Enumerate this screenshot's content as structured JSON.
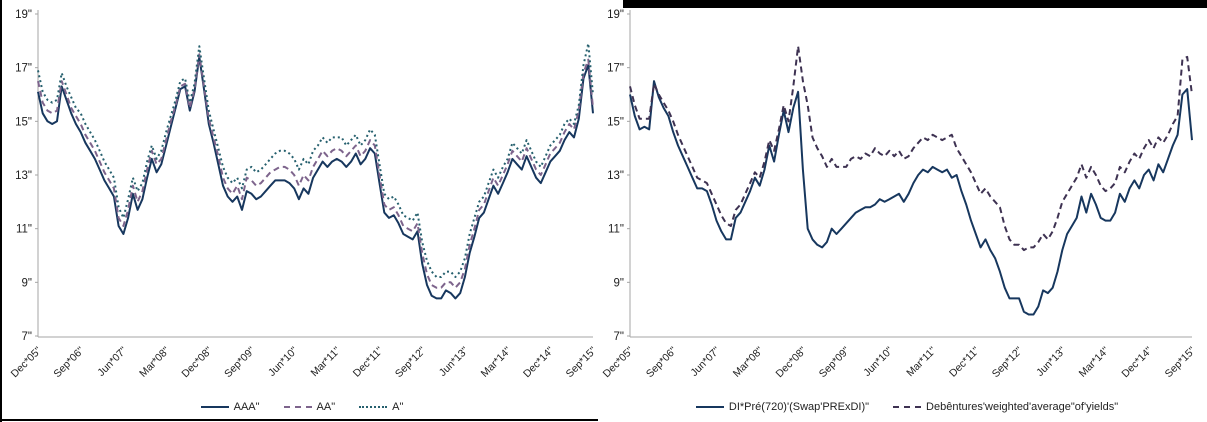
{
  "chart_data": [
    {
      "type": "line",
      "title": "",
      "xlabel": "",
      "ylabel": "",
      "ylim": [
        7,
        19
      ],
      "grid": false,
      "legend_position": "bottom-center",
      "y_tick_labels": [
        "19\"",
        "17\"",
        "15\"",
        "13\"",
        "11\"",
        "9\"",
        "7\""
      ],
      "x_tick_labels": [
        "Dec*05\"",
        "Sep*06\"",
        "Jun*07\"",
        "Mar*08\"",
        "Dec*08\"",
        "Sep*09\"",
        "Jun*10\"",
        "Mar*11\"",
        "Dec*11\"",
        "Sep*12\"",
        "Jun*13\"",
        "Mar*14\"",
        "Dec*14\"",
        "Sep*15\""
      ],
      "months_between_labels": 9,
      "n_points": 118,
      "axis_color": "#a6a6a6",
      "series": [
        {
          "name": "AAA\"",
          "style": "solid",
          "color": "#17375E",
          "values": [
            16.1,
            15.3,
            15.0,
            14.9,
            15.0,
            16.3,
            15.8,
            15.3,
            14.9,
            14.6,
            14.2,
            13.9,
            13.6,
            13.2,
            12.8,
            12.5,
            12.2,
            11.1,
            10.8,
            11.4,
            12.3,
            11.7,
            12.1,
            12.9,
            13.6,
            13.1,
            13.4,
            14.1,
            14.8,
            15.5,
            16.2,
            16.3,
            15.4,
            16.1,
            17.4,
            16.2,
            14.9,
            14.2,
            13.4,
            12.6,
            12.2,
            12.0,
            12.2,
            11.7,
            12.4,
            12.3,
            12.1,
            12.2,
            12.4,
            12.6,
            12.8,
            12.8,
            12.8,
            12.7,
            12.5,
            12.1,
            12.5,
            12.3,
            12.9,
            13.2,
            13.5,
            13.3,
            13.5,
            13.6,
            13.5,
            13.3,
            13.5,
            13.8,
            13.4,
            13.6,
            14.0,
            13.8,
            12.7,
            11.6,
            11.4,
            11.5,
            11.2,
            10.8,
            10.7,
            10.6,
            10.9,
            9.7,
            8.9,
            8.5,
            8.4,
            8.4,
            8.7,
            8.6,
            8.4,
            8.6,
            9.2,
            10.1,
            10.7,
            11.4,
            11.6,
            12.1,
            12.6,
            12.3,
            12.7,
            13.1,
            13.6,
            13.4,
            13.2,
            13.7,
            13.3,
            12.9,
            12.7,
            13.1,
            13.5,
            13.7,
            13.9,
            14.3,
            14.6,
            14.4,
            15.1,
            16.6,
            17.1,
            15.3
          ]
        },
        {
          "name": "AA\"",
          "style": "dashed",
          "color": "#7D648C",
          "values": [
            16.5,
            15.7,
            15.4,
            15.3,
            15.4,
            16.5,
            16.0,
            15.5,
            15.2,
            14.9,
            14.5,
            14.2,
            13.9,
            13.5,
            13.1,
            12.8,
            12.5,
            11.4,
            11.1,
            11.7,
            12.6,
            12.0,
            12.4,
            13.2,
            13.9,
            13.4,
            13.6,
            14.3,
            15.0,
            15.6,
            16.3,
            16.4,
            15.5,
            16.2,
            17.5,
            16.3,
            15.1,
            14.4,
            13.7,
            12.9,
            12.5,
            12.3,
            12.6,
            12.1,
            12.9,
            12.8,
            12.6,
            12.7,
            12.9,
            13.1,
            13.2,
            13.3,
            13.3,
            13.2,
            13.0,
            12.6,
            13.0,
            12.8,
            13.3,
            13.6,
            13.9,
            13.7,
            13.9,
            14.0,
            13.9,
            13.7,
            13.9,
            14.1,
            13.7,
            13.9,
            14.3,
            14.1,
            13.0,
            11.9,
            11.7,
            11.8,
            11.5,
            11.1,
            11.0,
            10.9,
            11.2,
            10.1,
            9.3,
            8.9,
            8.8,
            8.8,
            9.0,
            9.0,
            8.8,
            9.0,
            9.5,
            10.4,
            11.0,
            11.7,
            11.9,
            12.4,
            12.9,
            12.6,
            13.0,
            13.4,
            13.9,
            13.7,
            13.5,
            14.0,
            13.6,
            13.2,
            13.0,
            13.4,
            13.8,
            14.0,
            14.2,
            14.6,
            14.9,
            14.7,
            15.4,
            16.8,
            17.3,
            15.5
          ]
        },
        {
          "name": "A\"",
          "style": "dotted",
          "color": "#26606E",
          "values": [
            16.9,
            16.1,
            15.8,
            15.7,
            15.8,
            16.8,
            16.3,
            15.9,
            15.5,
            15.3,
            14.9,
            14.6,
            14.3,
            13.9,
            13.5,
            13.2,
            12.9,
            11.8,
            11.4,
            12.1,
            12.9,
            12.4,
            12.7,
            13.5,
            14.1,
            13.6,
            13.9,
            14.6,
            15.2,
            15.8,
            16.5,
            16.6,
            15.7,
            16.4,
            17.8,
            16.6,
            15.4,
            14.7,
            14.0,
            13.3,
            12.9,
            12.7,
            12.9,
            12.5,
            13.2,
            13.3,
            13.1,
            13.2,
            13.4,
            13.6,
            13.8,
            13.9,
            13.9,
            13.8,
            13.6,
            13.2,
            13.6,
            13.4,
            13.9,
            14.1,
            14.4,
            14.2,
            14.4,
            14.4,
            14.4,
            14.1,
            14.3,
            14.5,
            14.1,
            14.3,
            14.7,
            14.5,
            13.4,
            12.3,
            12.1,
            12.2,
            11.9,
            11.5,
            11.4,
            11.3,
            11.6,
            10.5,
            9.8,
            9.4,
            9.2,
            9.2,
            9.4,
            9.4,
            9.2,
            9.4,
            9.9,
            10.8,
            11.4,
            12.0,
            12.2,
            12.7,
            13.2,
            12.9,
            13.3,
            13.6,
            14.2,
            14.0,
            13.8,
            14.3,
            13.9,
            13.5,
            13.3,
            13.7,
            14.1,
            14.3,
            14.5,
            14.9,
            15.1,
            14.9,
            15.6,
            17.1,
            17.9,
            16.0
          ]
        }
      ]
    },
    {
      "type": "line",
      "title": "",
      "xlabel": "",
      "ylabel": "",
      "ylim": [
        7,
        19
      ],
      "grid": false,
      "legend_position": "bottom-center",
      "y_tick_labels": [
        "19\"",
        "17\"",
        "15\"",
        "13\"",
        "11\"",
        "9\"",
        "7\""
      ],
      "x_tick_labels": [
        "Dec*05\"",
        "Sep*06\"",
        "Jun*07\"",
        "Mar*08\"",
        "Dec*08\"",
        "Sep*09\"",
        "Jun*10\"",
        "Mar*11\"",
        "Dec*11\"",
        "Sep*12\"",
        "Jun*13\"",
        "Mar*14\"",
        "Dec*14\"",
        "Sep*15\""
      ],
      "months_between_labels": 9,
      "n_points": 118,
      "axis_color": "#a6a6a6",
      "series": [
        {
          "name": "DI*Pré(720)'(Swap'PRExDI)\"",
          "style": "solid",
          "color": "#17375E",
          "values": [
            16.0,
            15.2,
            14.7,
            14.8,
            14.7,
            16.5,
            15.9,
            15.5,
            15.2,
            14.6,
            14.1,
            13.7,
            13.3,
            12.9,
            12.5,
            12.5,
            12.4,
            11.9,
            11.3,
            10.9,
            10.6,
            10.6,
            11.4,
            11.6,
            12.0,
            12.4,
            12.9,
            12.6,
            13.2,
            14.1,
            13.5,
            14.5,
            15.4,
            14.6,
            15.5,
            16.1,
            13.2,
            11.0,
            10.6,
            10.4,
            10.3,
            10.5,
            11.0,
            10.8,
            11.0,
            11.2,
            11.4,
            11.6,
            11.7,
            11.8,
            11.8,
            11.9,
            12.1,
            12.0,
            12.1,
            12.2,
            12.3,
            12.0,
            12.3,
            12.7,
            13.0,
            13.2,
            13.1,
            13.3,
            13.2,
            13.1,
            13.2,
            12.9,
            13.0,
            12.4,
            11.9,
            11.3,
            10.8,
            10.3,
            10.6,
            10.2,
            9.9,
            9.4,
            8.8,
            8.4,
            8.4,
            8.4,
            7.9,
            7.8,
            7.8,
            8.1,
            8.7,
            8.6,
            8.8,
            9.4,
            10.2,
            10.8,
            11.1,
            11.4,
            12.2,
            11.6,
            12.3,
            11.9,
            11.4,
            11.3,
            11.3,
            11.6,
            12.3,
            12.0,
            12.5,
            12.8,
            12.5,
            13.0,
            13.2,
            12.8,
            13.4,
            13.1,
            13.6,
            14.1,
            14.5,
            16.0,
            16.2,
            14.3
          ]
        },
        {
          "name": "Debêntures'weighted'average\"of'yields\"",
          "style": "dashed",
          "color": "#3E3252",
          "values": [
            16.3,
            15.6,
            15.1,
            15.1,
            15.1,
            16.4,
            16.0,
            15.7,
            15.4,
            15.0,
            14.5,
            14.1,
            13.7,
            13.3,
            12.9,
            12.8,
            12.7,
            12.3,
            11.9,
            11.5,
            11.2,
            11.1,
            11.7,
            11.9,
            12.3,
            12.7,
            13.1,
            12.9,
            13.5,
            14.3,
            13.9,
            14.7,
            15.6,
            15.0,
            16.3,
            17.8,
            16.5,
            15.6,
            14.4,
            14.0,
            13.7,
            13.3,
            13.6,
            13.3,
            13.3,
            13.3,
            13.6,
            13.7,
            13.6,
            13.8,
            13.7,
            14.0,
            13.8,
            13.7,
            13.9,
            13.7,
            13.9,
            13.6,
            13.7,
            14.0,
            14.2,
            14.4,
            14.3,
            14.5,
            14.4,
            14.3,
            14.4,
            14.5,
            14.0,
            13.7,
            13.4,
            13.1,
            12.7,
            12.3,
            12.5,
            12.2,
            12.0,
            11.8,
            11.1,
            10.6,
            10.4,
            10.4,
            10.2,
            10.3,
            10.3,
            10.5,
            10.8,
            10.6,
            10.9,
            11.4,
            12.0,
            12.3,
            12.6,
            12.9,
            13.4,
            12.9,
            13.3,
            13.0,
            12.6,
            12.4,
            12.5,
            12.7,
            13.3,
            13.1,
            13.5,
            13.8,
            13.6,
            14.0,
            14.3,
            14.0,
            14.4,
            14.2,
            14.5,
            14.9,
            15.2,
            17.3,
            17.4,
            16.0
          ]
        }
      ]
    }
  ],
  "decorations": {
    "border_color": "#000000",
    "background": "#ffffff"
  }
}
